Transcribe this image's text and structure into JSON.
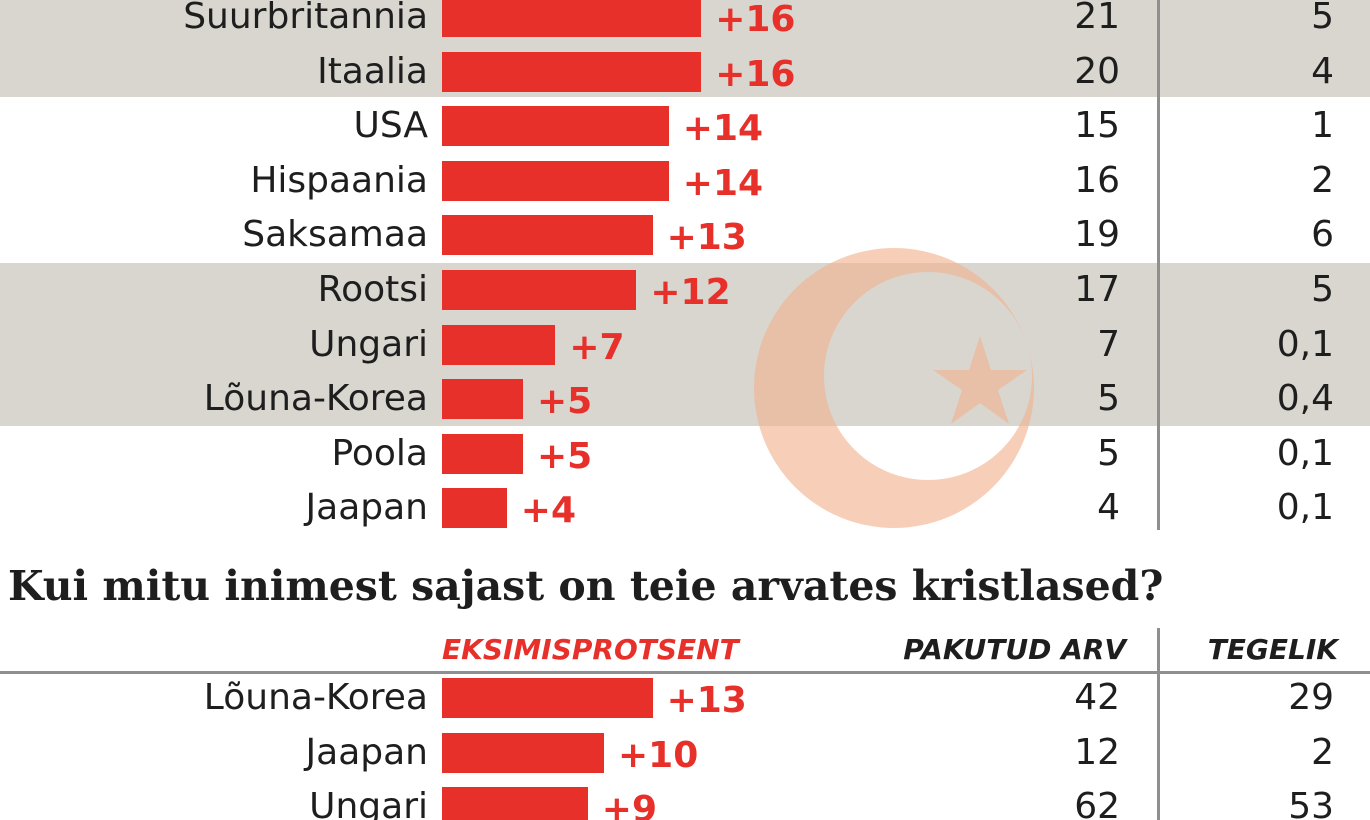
{
  "colors": {
    "bar": "#e8302a",
    "band": "#d9d6d0",
    "text": "#1e1e1e",
    "rule": "#8f8f8f",
    "watermark": "#f3b08c"
  },
  "watermark_icon": "crescent-star-icon",
  "chart_data": [
    {
      "type": "bar",
      "orientation": "horizontal",
      "title": "",
      "categories": [
        "Suurbritannia",
        "Itaalia",
        "USA",
        "Hispaania",
        "Saksamaa",
        "Rootsi",
        "Ungari",
        "Lõuna-Korea",
        "Poola",
        "Jaapan"
      ],
      "values": [
        16,
        16,
        14,
        14,
        13,
        12,
        7,
        5,
        5,
        4
      ],
      "value_labels": [
        "+16",
        "+16",
        "+14",
        "+14",
        "+13",
        "+12",
        "+7",
        "+5",
        "+5",
        "+4"
      ],
      "guessed": [
        "21",
        "20",
        "15",
        "16",
        "19",
        "17",
        "7",
        "5",
        "5",
        "4"
      ],
      "actual": [
        "5",
        "4",
        "1",
        "2",
        "6",
        "5",
        "0,1",
        "0,4",
        "0,1",
        "0,1"
      ],
      "shaded_rows": [
        0,
        1,
        5,
        6,
        7
      ]
    },
    {
      "type": "bar",
      "orientation": "horizontal",
      "title": "Kui mitu inimest sajast on teie arvates kristlased?",
      "column_headers": {
        "error": "EKSIMISPROTSENT",
        "guessed": "PAKUTUD ARV",
        "actual": "TEGELIK"
      },
      "categories": [
        "Lõuna-Korea",
        "Jaapan",
        "Ungari"
      ],
      "values": [
        13,
        10,
        9
      ],
      "value_labels": [
        "+13",
        "+10",
        "+9"
      ],
      "guessed": [
        "42",
        "12",
        "62"
      ],
      "actual": [
        "29",
        "2",
        "53"
      ]
    }
  ]
}
